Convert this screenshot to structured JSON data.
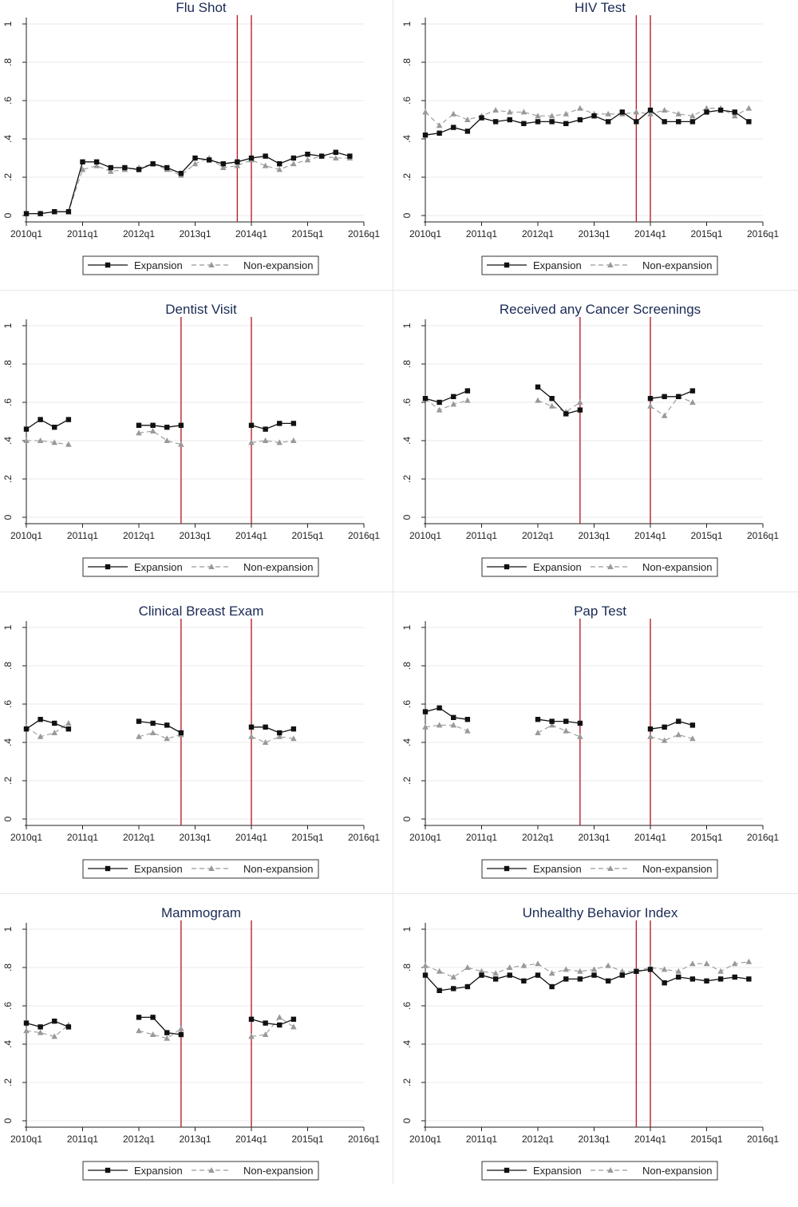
{
  "colors": {
    "expansion": "#111111",
    "nonexpansion": "#999999",
    "vline": "#b5232b",
    "grid": "#e8e8e8",
    "title": "#1a2a55"
  },
  "chart_data": [
    {
      "type": "line",
      "title": "Flu Shot",
      "x_tick_labels": [
        "2010q1",
        "2011q1",
        "2012q1",
        "2013q1",
        "2014q1",
        "2015q1",
        "2016q1"
      ],
      "y_tick_labels": [
        "0",
        ".2",
        ".4",
        ".6",
        ".8",
        "1"
      ],
      "ylim": [
        0,
        1
      ],
      "xlim": [
        "2010q1",
        "2016q1"
      ],
      "grid": true,
      "legend": "bottom",
      "vlines": [
        "2013q4",
        "2014q1"
      ],
      "series": [
        {
          "name": "Expansion",
          "marker": "square",
          "x": [
            "2010q1",
            "2010q2",
            "2010q3",
            "2010q4",
            "2011q1",
            "2011q2",
            "2011q3",
            "2011q4",
            "2012q1",
            "2012q2",
            "2012q3",
            "2012q4",
            "2013q1",
            "2013q2",
            "2013q3",
            "2013q4",
            "2014q1",
            "2014q2",
            "2014q3",
            "2014q4",
            "2015q1",
            "2015q2",
            "2015q3",
            "2015q4"
          ],
          "values": [
            0.01,
            0.01,
            0.02,
            0.02,
            0.28,
            0.28,
            0.25,
            0.25,
            0.24,
            0.27,
            0.25,
            0.22,
            0.3,
            0.29,
            0.27,
            0.28,
            0.3,
            0.31,
            0.27,
            0.3,
            0.32,
            0.31,
            0.33,
            0.31
          ]
        },
        {
          "name": "Non-expansion",
          "marker": "triangle",
          "x": [
            "2010q1",
            "2010q2",
            "2010q3",
            "2010q4",
            "2011q1",
            "2011q2",
            "2011q3",
            "2011q4",
            "2012q1",
            "2012q2",
            "2012q3",
            "2012q4",
            "2013q1",
            "2013q2",
            "2013q3",
            "2013q4",
            "2014q1",
            "2014q2",
            "2014q3",
            "2014q4",
            "2015q1",
            "2015q2",
            "2015q3",
            "2015q4"
          ],
          "values": [
            0.01,
            0.01,
            0.02,
            0.02,
            0.24,
            0.26,
            0.23,
            0.24,
            0.25,
            0.27,
            0.24,
            0.21,
            0.27,
            0.3,
            0.25,
            0.26,
            0.29,
            0.26,
            0.24,
            0.27,
            0.29,
            0.31,
            0.3,
            0.3
          ]
        }
      ]
    },
    {
      "type": "line",
      "title": "HIV Test",
      "x_tick_labels": [
        "2010q1",
        "2011q1",
        "2012q1",
        "2013q1",
        "2014q1",
        "2015q1",
        "2016q1"
      ],
      "y_tick_labels": [
        "0",
        ".2",
        ".4",
        ".6",
        ".8",
        "1"
      ],
      "ylim": [
        0,
        1
      ],
      "xlim": [
        "2010q1",
        "2016q1"
      ],
      "grid": true,
      "legend": "bottom",
      "vlines": [
        "2013q4",
        "2014q1"
      ],
      "series": [
        {
          "name": "Expansion",
          "marker": "square",
          "x": [
            "2010q1",
            "2010q2",
            "2010q3",
            "2010q4",
            "2011q1",
            "2011q2",
            "2011q3",
            "2011q4",
            "2012q1",
            "2012q2",
            "2012q3",
            "2012q4",
            "2013q1",
            "2013q2",
            "2013q3",
            "2013q4",
            "2014q1",
            "2014q2",
            "2014q3",
            "2014q4",
            "2015q1",
            "2015q2",
            "2015q3",
            "2015q4"
          ],
          "values": [
            0.42,
            0.43,
            0.46,
            0.44,
            0.51,
            0.49,
            0.5,
            0.48,
            0.49,
            0.49,
            0.48,
            0.5,
            0.52,
            0.49,
            0.54,
            0.49,
            0.55,
            0.49,
            0.49,
            0.49,
            0.54,
            0.55,
            0.54,
            0.49
          ]
        },
        {
          "name": "Non-expansion",
          "marker": "triangle",
          "x": [
            "2010q1",
            "2010q2",
            "2010q3",
            "2010q4",
            "2011q1",
            "2011q2",
            "2011q3",
            "2011q4",
            "2012q1",
            "2012q2",
            "2012q3",
            "2012q4",
            "2013q1",
            "2013q2",
            "2013q3",
            "2013q4",
            "2014q1",
            "2014q2",
            "2014q3",
            "2014q4",
            "2015q1",
            "2015q2",
            "2015q3",
            "2015q4"
          ],
          "values": [
            0.54,
            0.47,
            0.53,
            0.5,
            0.52,
            0.55,
            0.54,
            0.54,
            0.52,
            0.52,
            0.53,
            0.56,
            0.53,
            0.53,
            0.53,
            0.54,
            0.53,
            0.55,
            0.53,
            0.52,
            0.56,
            0.56,
            0.52,
            0.56
          ]
        }
      ]
    },
    {
      "type": "line",
      "title": "Dentist Visit",
      "x_tick_labels": [
        "2010q1",
        "2011q1",
        "2012q1",
        "2013q1",
        "2014q1",
        "2015q1",
        "2016q1"
      ],
      "y_tick_labels": [
        "0",
        ".2",
        ".4",
        ".6",
        ".8",
        "1"
      ],
      "ylim": [
        0,
        1
      ],
      "xlim": [
        "2010q1",
        "2016q1"
      ],
      "grid": true,
      "legend": "bottom",
      "vlines": [
        "2012q4",
        "2014q1"
      ],
      "series": [
        {
          "name": "Expansion",
          "marker": "square",
          "x": [
            "2010q1",
            "2010q2",
            "2010q3",
            "2010q4",
            "2012q1",
            "2012q2",
            "2012q3",
            "2012q4",
            "2014q1",
            "2014q2",
            "2014q3",
            "2014q4"
          ],
          "values": [
            0.46,
            0.51,
            0.47,
            0.51,
            0.48,
            0.48,
            0.47,
            0.48,
            0.48,
            0.46,
            0.49,
            0.49
          ]
        },
        {
          "name": "Non-expansion",
          "marker": "triangle",
          "x": [
            "2010q1",
            "2010q2",
            "2010q3",
            "2010q4",
            "2012q1",
            "2012q2",
            "2012q3",
            "2012q4",
            "2014q1",
            "2014q2",
            "2014q3",
            "2014q4"
          ],
          "values": [
            0.4,
            0.4,
            0.39,
            0.38,
            0.44,
            0.45,
            0.4,
            0.38,
            0.39,
            0.4,
            0.39,
            0.4
          ]
        }
      ]
    },
    {
      "type": "line",
      "title": "Received any Cancer Screenings",
      "x_tick_labels": [
        "2010q1",
        "2011q1",
        "2012q1",
        "2013q1",
        "2014q1",
        "2015q1",
        "2016q1"
      ],
      "y_tick_labels": [
        "0",
        ".2",
        ".4",
        ".6",
        ".8",
        "1"
      ],
      "ylim": [
        0,
        1
      ],
      "xlim": [
        "2010q1",
        "2016q1"
      ],
      "grid": true,
      "legend": "bottom",
      "vlines": [
        "2012q4",
        "2014q1"
      ],
      "series": [
        {
          "name": "Expansion",
          "marker": "square",
          "x": [
            "2010q1",
            "2010q2",
            "2010q3",
            "2010q4",
            "2012q1",
            "2012q2",
            "2012q3",
            "2012q4",
            "2014q1",
            "2014q2",
            "2014q3",
            "2014q4"
          ],
          "values": [
            0.62,
            0.6,
            0.63,
            0.66,
            0.68,
            0.62,
            0.54,
            0.56,
            0.62,
            0.63,
            0.63,
            0.66
          ]
        },
        {
          "name": "Non-expansion",
          "marker": "triangle",
          "x": [
            "2010q1",
            "2010q2",
            "2010q3",
            "2010q4",
            "2012q1",
            "2012q2",
            "2012q3",
            "2012q4",
            "2014q1",
            "2014q2",
            "2014q3",
            "2014q4"
          ],
          "values": [
            0.62,
            0.56,
            0.59,
            0.61,
            0.61,
            0.58,
            0.55,
            0.6,
            0.58,
            0.53,
            0.63,
            0.6
          ]
        }
      ]
    },
    {
      "type": "line",
      "title": "Clinical Breast Exam",
      "x_tick_labels": [
        "2010q1",
        "2011q1",
        "2012q1",
        "2013q1",
        "2014q1",
        "2015q1",
        "2016q1"
      ],
      "y_tick_labels": [
        "0",
        ".2",
        ".4",
        ".6",
        ".8",
        "1"
      ],
      "ylim": [
        0,
        1
      ],
      "xlim": [
        "2010q1",
        "2016q1"
      ],
      "grid": true,
      "legend": "bottom",
      "vlines": [
        "2012q4",
        "2014q1"
      ],
      "series": [
        {
          "name": "Expansion",
          "marker": "square",
          "x": [
            "2010q1",
            "2010q2",
            "2010q3",
            "2010q4",
            "2012q1",
            "2012q2",
            "2012q3",
            "2012q4",
            "2014q1",
            "2014q2",
            "2014q3",
            "2014q4"
          ],
          "values": [
            0.47,
            0.52,
            0.5,
            0.47,
            0.51,
            0.5,
            0.49,
            0.45,
            0.48,
            0.48,
            0.45,
            0.47
          ]
        },
        {
          "name": "Non-expansion",
          "marker": "triangle",
          "x": [
            "2010q1",
            "2010q2",
            "2010q3",
            "2010q4",
            "2012q1",
            "2012q2",
            "2012q3",
            "2012q4",
            "2014q1",
            "2014q2",
            "2014q3",
            "2014q4"
          ],
          "values": [
            0.48,
            0.43,
            0.45,
            0.5,
            0.43,
            0.45,
            0.42,
            0.44,
            0.43,
            0.4,
            0.43,
            0.42
          ]
        }
      ]
    },
    {
      "type": "line",
      "title": "Pap Test",
      "x_tick_labels": [
        "2010q1",
        "2011q1",
        "2012q1",
        "2013q1",
        "2014q1",
        "2015q1",
        "2016q1"
      ],
      "y_tick_labels": [
        "0",
        ".2",
        ".4",
        ".6",
        ".8",
        "1"
      ],
      "ylim": [
        0,
        1
      ],
      "xlim": [
        "2010q1",
        "2016q1"
      ],
      "grid": true,
      "legend": "bottom",
      "vlines": [
        "2012q4",
        "2014q1"
      ],
      "series": [
        {
          "name": "Expansion",
          "marker": "square",
          "x": [
            "2010q1",
            "2010q2",
            "2010q3",
            "2010q4",
            "2012q1",
            "2012q2",
            "2012q3",
            "2012q4",
            "2014q1",
            "2014q2",
            "2014q3",
            "2014q4"
          ],
          "values": [
            0.56,
            0.58,
            0.53,
            0.52,
            0.52,
            0.51,
            0.51,
            0.5,
            0.47,
            0.48,
            0.51,
            0.49
          ]
        },
        {
          "name": "Non-expansion",
          "marker": "triangle",
          "x": [
            "2010q1",
            "2010q2",
            "2010q3",
            "2010q4",
            "2012q1",
            "2012q2",
            "2012q3",
            "2012q4",
            "2014q1",
            "2014q2",
            "2014q3",
            "2014q4"
          ],
          "values": [
            0.48,
            0.49,
            0.49,
            0.46,
            0.45,
            0.49,
            0.46,
            0.43,
            0.43,
            0.41,
            0.44,
            0.42
          ]
        }
      ]
    },
    {
      "type": "line",
      "title": "Mammogram",
      "x_tick_labels": [
        "2010q1",
        "2011q1",
        "2012q1",
        "2013q1",
        "2014q1",
        "2015q1",
        "2016q1"
      ],
      "y_tick_labels": [
        "0",
        ".2",
        ".4",
        ".6",
        ".8",
        "1"
      ],
      "ylim": [
        0,
        1
      ],
      "xlim": [
        "2010q1",
        "2016q1"
      ],
      "grid": true,
      "legend": "bottom",
      "vlines": [
        "2012q4",
        "2014q1"
      ],
      "series": [
        {
          "name": "Expansion",
          "marker": "square",
          "x": [
            "2010q1",
            "2010q2",
            "2010q3",
            "2010q4",
            "2012q1",
            "2012q2",
            "2012q3",
            "2012q4",
            "2014q1",
            "2014q2",
            "2014q3",
            "2014q4"
          ],
          "values": [
            0.51,
            0.49,
            0.52,
            0.49,
            0.54,
            0.54,
            0.46,
            0.45,
            0.53,
            0.51,
            0.5,
            0.53
          ]
        },
        {
          "name": "Non-expansion",
          "marker": "triangle",
          "x": [
            "2010q1",
            "2010q2",
            "2010q3",
            "2010q4",
            "2012q1",
            "2012q2",
            "2012q3",
            "2012q4",
            "2014q1",
            "2014q2",
            "2014q3",
            "2014q4"
          ],
          "values": [
            0.47,
            0.46,
            0.44,
            0.5,
            0.47,
            0.45,
            0.43,
            0.48,
            0.44,
            0.45,
            0.54,
            0.49
          ]
        }
      ]
    },
    {
      "type": "line",
      "title": "Unhealthy Behavior Index",
      "x_tick_labels": [
        "2010q1",
        "2011q1",
        "2012q1",
        "2013q1",
        "2014q1",
        "2015q1",
        "2016q1"
      ],
      "y_tick_labels": [
        "0",
        ".2",
        ".4",
        ".6",
        ".8",
        "1"
      ],
      "ylim": [
        0,
        1
      ],
      "xlim": [
        "2010q1",
        "2016q1"
      ],
      "grid": true,
      "legend": "bottom",
      "vlines": [
        "2013q4",
        "2014q1"
      ],
      "series": [
        {
          "name": "Expansion",
          "marker": "square",
          "x": [
            "2010q1",
            "2010q2",
            "2010q3",
            "2010q4",
            "2011q1",
            "2011q2",
            "2011q3",
            "2011q4",
            "2012q1",
            "2012q2",
            "2012q3",
            "2012q4",
            "2013q1",
            "2013q2",
            "2013q3",
            "2013q4",
            "2014q1",
            "2014q2",
            "2014q3",
            "2014q4",
            "2015q1",
            "2015q2",
            "2015q3",
            "2015q4"
          ],
          "values": [
            0.76,
            0.68,
            0.69,
            0.7,
            0.76,
            0.74,
            0.76,
            0.73,
            0.76,
            0.7,
            0.74,
            0.74,
            0.76,
            0.73,
            0.76,
            0.78,
            0.79,
            0.72,
            0.75,
            0.74,
            0.73,
            0.74,
            0.75,
            0.74
          ]
        },
        {
          "name": "Non-expansion",
          "marker": "triangle",
          "x": [
            "2010q1",
            "2010q2",
            "2010q3",
            "2010q4",
            "2011q1",
            "2011q2",
            "2011q3",
            "2011q4",
            "2012q1",
            "2012q2",
            "2012q3",
            "2012q4",
            "2013q1",
            "2013q2",
            "2013q3",
            "2013q4",
            "2014q1",
            "2014q2",
            "2014q3",
            "2014q4",
            "2015q1",
            "2015q2",
            "2015q3",
            "2015q4"
          ],
          "values": [
            0.81,
            0.78,
            0.75,
            0.8,
            0.78,
            0.77,
            0.8,
            0.81,
            0.82,
            0.77,
            0.79,
            0.78,
            0.79,
            0.81,
            0.78,
            0.78,
            0.8,
            0.79,
            0.78,
            0.82,
            0.82,
            0.78,
            0.82,
            0.83
          ]
        }
      ]
    }
  ]
}
